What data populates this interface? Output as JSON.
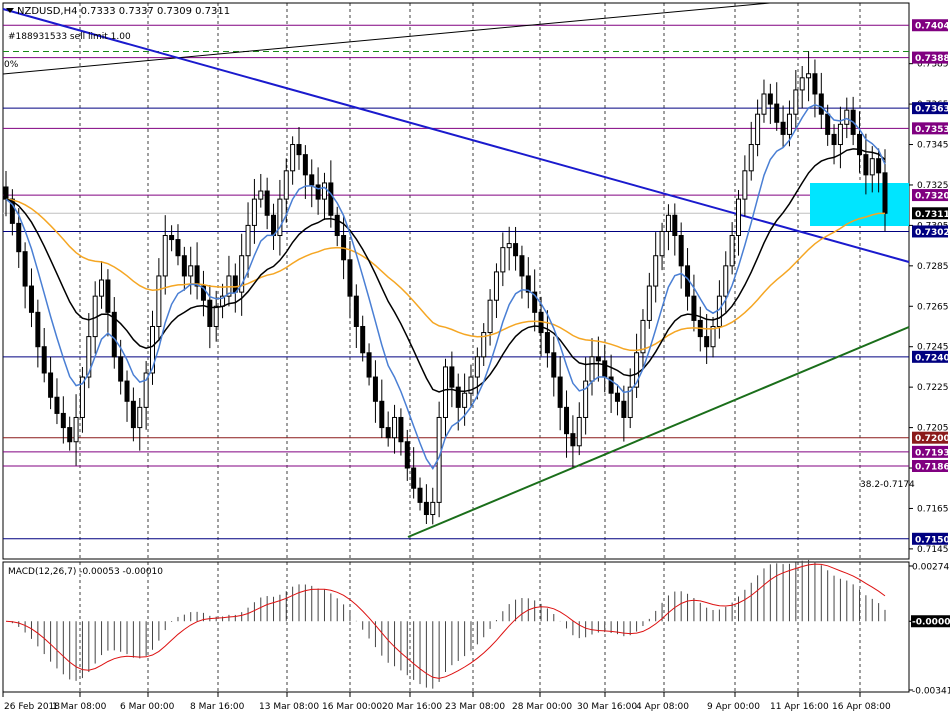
{
  "chart_data": [
    {
      "type": "candlestick",
      "symbol_header": "NZDUSD,H4  0.7333 0.7337 0.7309 0.7311",
      "order_label": "#188931533 sell limit 1.00",
      "fib_label_top": "0%",
      "fib_label_bottom": "38.2-0.7174",
      "ylim": [
        0.714,
        0.7415
      ],
      "price_ticks": [
        "0.7385",
        "0.7365",
        "0.7345",
        "0.7325",
        "0.7305",
        "0.7285",
        "0.7265",
        "0.7245",
        "0.7225",
        "0.7205",
        "0.7185",
        "0.7165",
        "0.7145"
      ],
      "x_dates": [
        "26 Feb 2018",
        "1 Mar 08:00",
        "6 Mar 00:00",
        "8 Mar 16:00",
        "13 Mar 08:00",
        "16 Mar 00:00",
        "20 Mar 16:00",
        "23 Mar 08:00",
        "28 Mar 00:00",
        "30 Mar 16:00",
        "4 Apr 08:00",
        "9 Apr 00:00",
        "11 Apr 16:00",
        "16 Apr 08:00"
      ],
      "levels": [
        {
          "price": 0.7404,
          "label": "0.7404",
          "color": "#800080"
        },
        {
          "price": 0.7388,
          "label": "0.7388",
          "color": "#800080"
        },
        {
          "price": 0.7363,
          "label": "0.7363",
          "color": "#000080"
        },
        {
          "price": 0.7353,
          "label": "0.7353",
          "color": "#800080"
        },
        {
          "price": 0.732,
          "label": "0.7320",
          "color": "#800080"
        },
        {
          "price": 0.7302,
          "label": "0.7302",
          "color": "#000080"
        },
        {
          "price": 0.724,
          "label": "0.7240",
          "color": "#000080"
        },
        {
          "price": 0.72,
          "label": "0.7200",
          "color": "#8b1a1a"
        },
        {
          "price": 0.7193,
          "label": "0.7193",
          "color": "#800080"
        },
        {
          "price": 0.7186,
          "label": "0.7186",
          "color": "#800080"
        },
        {
          "price": 0.715,
          "label": "0.7150",
          "color": "#000080"
        }
      ],
      "current_price": {
        "price": 0.7311,
        "label": "0.7311"
      },
      "series_close": [
        0.7318,
        0.7306,
        0.7292,
        0.7275,
        0.7262,
        0.7245,
        0.7232,
        0.722,
        0.7212,
        0.7205,
        0.7198,
        0.721,
        0.723,
        0.725,
        0.727,
        0.7278,
        0.7262,
        0.724,
        0.7228,
        0.7218,
        0.7205,
        0.7215,
        0.7232,
        0.7255,
        0.728,
        0.73,
        0.7298,
        0.729,
        0.728,
        0.7285,
        0.7275,
        0.7268,
        0.7255,
        0.7265,
        0.727,
        0.728,
        0.7272,
        0.729,
        0.7305,
        0.7318,
        0.7322,
        0.731,
        0.73,
        0.7318,
        0.7332,
        0.7345,
        0.734,
        0.733,
        0.7325,
        0.7318,
        0.7326,
        0.731,
        0.73,
        0.7288,
        0.727,
        0.7255,
        0.7242,
        0.723,
        0.7218,
        0.7205,
        0.72,
        0.721,
        0.7198,
        0.7185,
        0.7175,
        0.7168,
        0.7162,
        0.7168,
        0.721,
        0.7235,
        0.7225,
        0.7215,
        0.7222,
        0.723,
        0.724,
        0.7252,
        0.7268,
        0.7282,
        0.7294,
        0.7296,
        0.729,
        0.728,
        0.7272,
        0.7262,
        0.7252,
        0.7242,
        0.723,
        0.7215,
        0.7202,
        0.7196,
        0.721,
        0.7228,
        0.724,
        0.7238,
        0.723,
        0.7222,
        0.7218,
        0.721,
        0.7225,
        0.7242,
        0.7258,
        0.7275,
        0.729,
        0.7302,
        0.731,
        0.73,
        0.7285,
        0.727,
        0.7258,
        0.725,
        0.7245,
        0.7255,
        0.727,
        0.7285,
        0.73,
        0.7318,
        0.7332,
        0.7345,
        0.736,
        0.737,
        0.7365,
        0.7356,
        0.735,
        0.736,
        0.7372,
        0.7378,
        0.738,
        0.737,
        0.736,
        0.735,
        0.7345,
        0.7355,
        0.7362,
        0.735,
        0.734,
        0.733,
        0.7338,
        0.7331,
        0.7311
      ],
      "macd": {
        "label": "MACD(12,26,7) -0.00053 -0.00010",
        "ylim": [
          -0.00341,
          0.00274
        ],
        "ticks": [
          "0.00274",
          "-0.00000",
          "-0.00341"
        ]
      }
    }
  ]
}
